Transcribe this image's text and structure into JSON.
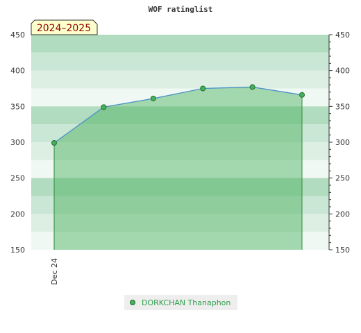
{
  "chart_data": {
    "type": "line",
    "title": "WOF ratinglist",
    "season_label": "2024–2025",
    "x_tick_labels": [
      "Dec 24"
    ],
    "y_ticks": [
      150,
      200,
      250,
      300,
      350,
      400,
      450
    ],
    "ylim": [
      150,
      450
    ],
    "grid": "banded",
    "legend_position": "bottom-center",
    "series": [
      {
        "name": "DORKCHAN Thanaphon",
        "values": [
          299,
          349,
          361,
          375,
          377,
          366
        ]
      }
    ],
    "colors": {
      "line": "#4a90c8",
      "fill": "#46b05a",
      "marker": "#2e8b3e",
      "legend_text": "#2e9e4a",
      "badge_bg": "#ffffcc",
      "badge_text": "#8b0000"
    }
  }
}
